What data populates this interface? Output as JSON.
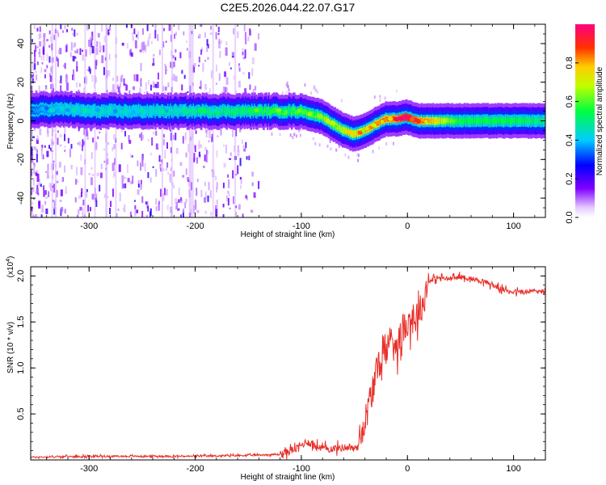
{
  "title": "C2E5.2026.044.22.07.G17",
  "chart_data": [
    {
      "type": "heatmap",
      "xlabel": "Height of straight line (km)",
      "ylabel": "Frequency (Hz)",
      "xlim": [
        -355,
        130
      ],
      "ylim": [
        -50,
        50
      ],
      "xticks": [
        -300,
        -200,
        -100,
        0,
        100
      ],
      "yticks": [
        -40,
        -20,
        0,
        20,
        40
      ],
      "colorbar": {
        "label": "Normalized spectral amplitude",
        "ticks": [
          0.0,
          0.2,
          0.4,
          0.6,
          0.8
        ],
        "tick_labels": [
          "0.0",
          "0.2",
          "0.4",
          "0.6",
          "0.8"
        ],
        "range": [
          0,
          1
        ]
      },
      "ridge": {
        "height_km": [
          -355,
          -340,
          -320,
          -300,
          -250,
          -200,
          -150,
          -120,
          -100,
          -80,
          -60,
          -50,
          -40,
          -30,
          -20,
          -10,
          0,
          10,
          50,
          100,
          130
        ],
        "frequency_hz": [
          5,
          6,
          6,
          5,
          5,
          5,
          5,
          5,
          5,
          2,
          -5,
          -7,
          -5,
          -2,
          1,
          1,
          2,
          0,
          0,
          0,
          0
        ],
        "peak_amplitude": [
          0.35,
          0.4,
          0.45,
          0.45,
          0.45,
          0.5,
          0.55,
          0.6,
          0.6,
          0.65,
          0.7,
          0.75,
          0.8,
          0.85,
          0.85,
          0.9,
          1.0,
          0.9,
          0.55,
          0.55,
          0.5
        ]
      }
    },
    {
      "type": "line",
      "xlabel": "Height of straight line (km)",
      "ylabel": "SNR (10 * v/v)",
      "scale_label": "(x10",
      "scale_exp": "4",
      "xlim": [
        -355,
        130
      ],
      "ylim": [
        0,
        2.1
      ],
      "xticks": [
        -300,
        -200,
        -100,
        0,
        100
      ],
      "yticks": [
        0.5,
        1.0,
        1.5,
        2.0
      ],
      "ytick_labels": [
        "0.5",
        "1.0",
        "1.5",
        "2.0"
      ],
      "series": [
        {
          "name": "SNR",
          "color": "#e8302a",
          "x": [
            -355,
            -300,
            -250,
            -200,
            -150,
            -120,
            -105,
            -95,
            -85,
            -75,
            -65,
            -55,
            -48,
            -42,
            -36,
            -30,
            -25,
            -20,
            -15,
            -10,
            -5,
            0,
            5,
            10,
            15,
            20,
            30,
            40,
            50,
            60,
            70,
            80,
            90,
            100,
            110,
            120,
            130
          ],
          "y": [
            0.03,
            0.04,
            0.04,
            0.04,
            0.05,
            0.06,
            0.12,
            0.2,
            0.14,
            0.12,
            0.13,
            0.14,
            0.12,
            0.35,
            0.6,
            0.9,
            1.1,
            1.2,
            1.35,
            1.25,
            1.4,
            1.5,
            1.55,
            1.6,
            1.7,
            1.95,
            1.98,
            1.97,
            1.99,
            1.97,
            1.95,
            1.9,
            1.85,
            1.83,
            1.82,
            1.84,
            1.83
          ]
        }
      ]
    }
  ]
}
